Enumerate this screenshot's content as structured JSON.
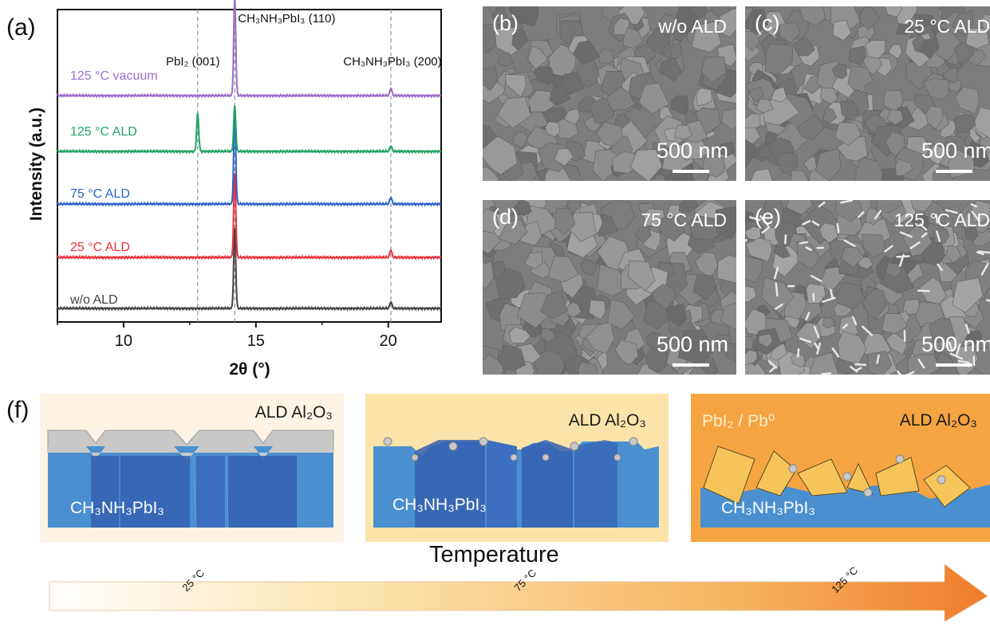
{
  "panels": {
    "a": "(a)",
    "b": "(b)",
    "c": "(c)",
    "d": "(d)",
    "e": "(e)",
    "f": "(f)"
  },
  "chart_data": {
    "type": "line",
    "xlabel": "2θ (°)",
    "ylabel": "Intensity (a.u.)",
    "xlim": [
      7.5,
      22
    ],
    "xticks": [
      "10",
      "15",
      "20"
    ],
    "x_tick_values": [
      10,
      15,
      20
    ],
    "reference_lines": [
      {
        "x": 12.8,
        "label": "PbI₂ (001)"
      },
      {
        "x": 14.2,
        "label": "CH₃NH₃PbI₃ (110)"
      },
      {
        "x": 20.1,
        "label": "CH₃NH₃PbI₃ (200)"
      }
    ],
    "series": [
      {
        "name": "w/o ALD",
        "color": "#444444",
        "peaks": [
          {
            "x": 14.2,
            "height": 2.1
          },
          {
            "x": 20.1,
            "height": 0.18
          }
        ]
      },
      {
        "name": "25 °C ALD",
        "color": "#e8323c",
        "peaks": [
          {
            "x": 14.2,
            "height": 2.2
          },
          {
            "x": 20.1,
            "height": 0.2
          }
        ]
      },
      {
        "name": "75 °C ALD",
        "color": "#2a63c4",
        "peaks": [
          {
            "x": 14.2,
            "height": 2.4
          },
          {
            "x": 20.1,
            "height": 0.18
          }
        ]
      },
      {
        "name": "125 °C ALD",
        "color": "#1fa463",
        "peaks": [
          {
            "x": 12.8,
            "height": 1.0
          },
          {
            "x": 14.2,
            "height": 1.2
          },
          {
            "x": 20.1,
            "height": 0.15
          }
        ]
      },
      {
        "name": "125 °C vacuum",
        "color": "#9b6fc8",
        "peaks": [
          {
            "x": 14.2,
            "height": 2.6
          },
          {
            "x": 20.1,
            "height": 0.2
          }
        ]
      }
    ]
  },
  "sem": [
    {
      "panel": "(b)",
      "condition": "w/o ALD",
      "scale": "500 nm"
    },
    {
      "panel": "(c)",
      "condition": "25 °C ALD",
      "scale": "500 nm"
    },
    {
      "panel": "(d)",
      "condition": "75 °C ALD",
      "scale": "500 nm"
    },
    {
      "panel": "(e)",
      "condition": "125 °C ALD",
      "scale": "500 nm"
    }
  ],
  "schematic": {
    "panel1": {
      "layer": "ALD Al₂O₃",
      "crystal": "CH₃NH₃PbI₃"
    },
    "panel2": {
      "layer": "ALD Al₂O₃",
      "crystal": "CH₃NH₃PbI₃"
    },
    "panel3": {
      "layer": "ALD Al₂O₃",
      "crystal": "CH₃NH₃PbI₃",
      "byproduct": "PbI₂ / Pb⁰"
    },
    "temperature_title": "Temperature",
    "ticks": [
      "25 °C",
      "75 °C",
      "125 °C"
    ],
    "colors": {
      "low": "#fdf4e6",
      "mid": "#fbe3aa",
      "high": "#f5a442",
      "crystal": "#4a90d0",
      "crystal_dark": "#3560b0",
      "al2o3": "#c8c8c8",
      "pbi2": "#f6c55a"
    }
  }
}
